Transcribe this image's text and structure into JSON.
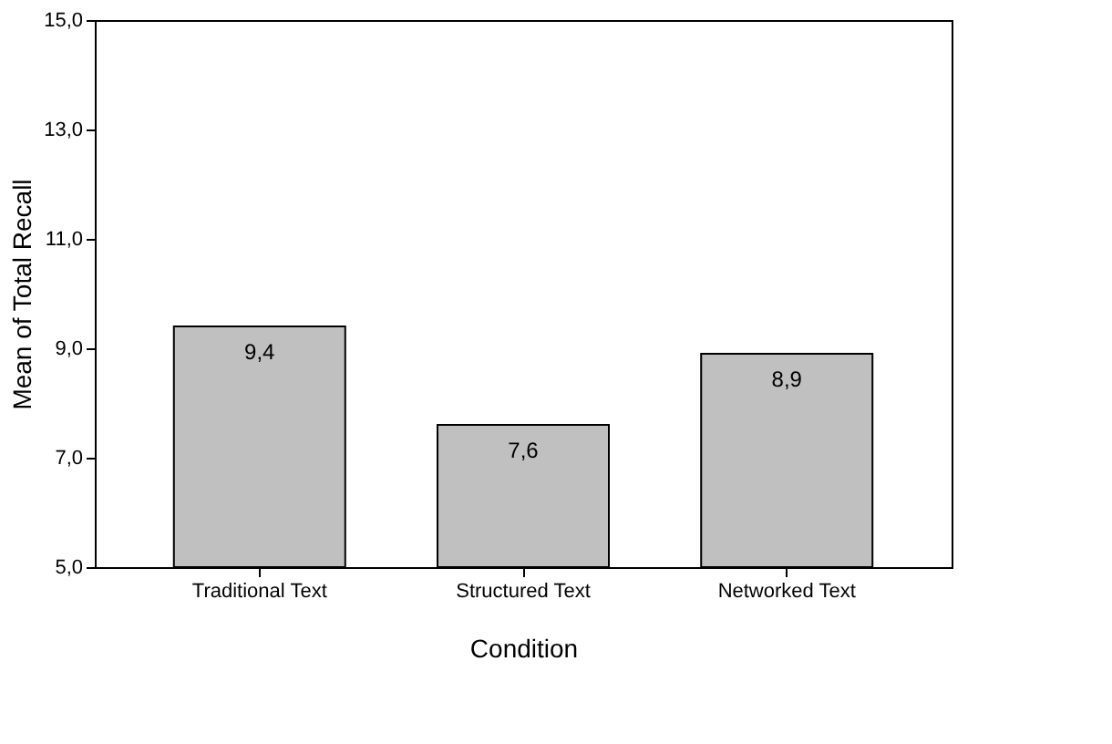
{
  "chart_data": {
    "type": "bar",
    "categories": [
      "Traditional Text",
      "Structured Text",
      "Networked Text"
    ],
    "values": [
      9.4,
      7.6,
      8.9
    ],
    "value_labels": [
      "9,4",
      "7,6",
      "8,9"
    ],
    "color": "#c0c0c0",
    "xlabel": "Condition",
    "ylabel": "Mean of Total Recall",
    "ylim": [
      5,
      15
    ],
    "yticks": [
      {
        "value": 5,
        "label": "5,0"
      },
      {
        "value": 7,
        "label": "7,0"
      },
      {
        "value": 9,
        "label": "9,0"
      },
      {
        "value": 11,
        "label": "11,0"
      },
      {
        "value": 13,
        "label": "13,0"
      },
      {
        "value": 15,
        "label": "15,0"
      }
    ],
    "grid": false
  }
}
